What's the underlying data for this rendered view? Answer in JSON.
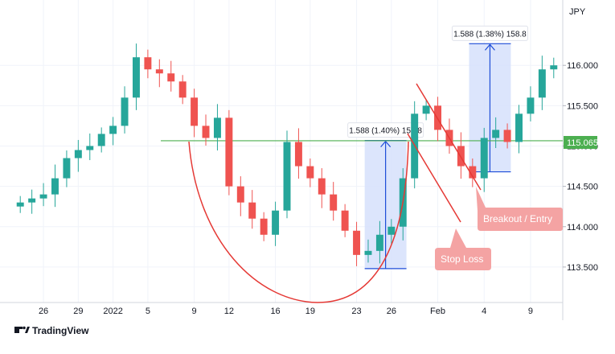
{
  "chart_data": {
    "type": "candlestick",
    "currency": "JPY",
    "y_ticks": [
      "113.500",
      "114.000",
      "114.500",
      "115.000",
      "115.500",
      "116.000"
    ],
    "ylim": [
      113.1,
      116.75
    ],
    "x_ticks": [
      {
        "i": 2,
        "label": "26"
      },
      {
        "i": 5,
        "label": "29"
      },
      {
        "i": 8,
        "label": "2022"
      },
      {
        "i": 11,
        "label": "5"
      },
      {
        "i": 15,
        "label": "9"
      },
      {
        "i": 18,
        "label": "12"
      },
      {
        "i": 22,
        "label": "16"
      },
      {
        "i": 25,
        "label": "19"
      },
      {
        "i": 29,
        "label": "23"
      },
      {
        "i": 32,
        "label": "26"
      },
      {
        "i": 36,
        "label": "Feb"
      },
      {
        "i": 40,
        "label": "4"
      },
      {
        "i": 44,
        "label": "9"
      }
    ],
    "closes": [
      114.3,
      114.35,
      114.4,
      114.6,
      114.85,
      114.95,
      115.0,
      115.15,
      115.25,
      115.6,
      116.1,
      115.95,
      115.9,
      115.8,
      115.6,
      115.25,
      115.1,
      115.35,
      114.5,
      114.3,
      114.1,
      113.9,
      114.2,
      115.05,
      114.75,
      114.6,
      114.4,
      114.2,
      113.95,
      113.65,
      113.7,
      113.9,
      114.0,
      114.6,
      115.4,
      115.5,
      115.2,
      115.0,
      114.75,
      114.6,
      115.1,
      115.2,
      115.05,
      115.4,
      115.6,
      115.95,
      116.0
    ],
    "horizontal_level": {
      "value": 115.065,
      "label": "115.065",
      "color": "#4caf50"
    },
    "measures": [
      {
        "label": "1.588 (1.40%) 158.8",
        "i_start": 30,
        "i_end": 33,
        "from": 113.48,
        "to": 115.068
      },
      {
        "label": "1.588 (1.38%) 158.8",
        "i_start": 39,
        "i_end": 42,
        "from": 114.68,
        "to": 116.268
      }
    ],
    "annotations": {
      "breakout": "Breakout / Entry",
      "stop": "Stop Loss"
    },
    "colors": {
      "up": "#26a69a",
      "down": "#ef5350",
      "pattern": "#e53935",
      "measure_arrow": "#1e4dd8",
      "measure_fill": "#d6e0fb",
      "callout_fill": "#f4a3a3"
    }
  },
  "brand": {
    "name": "TradingView"
  }
}
